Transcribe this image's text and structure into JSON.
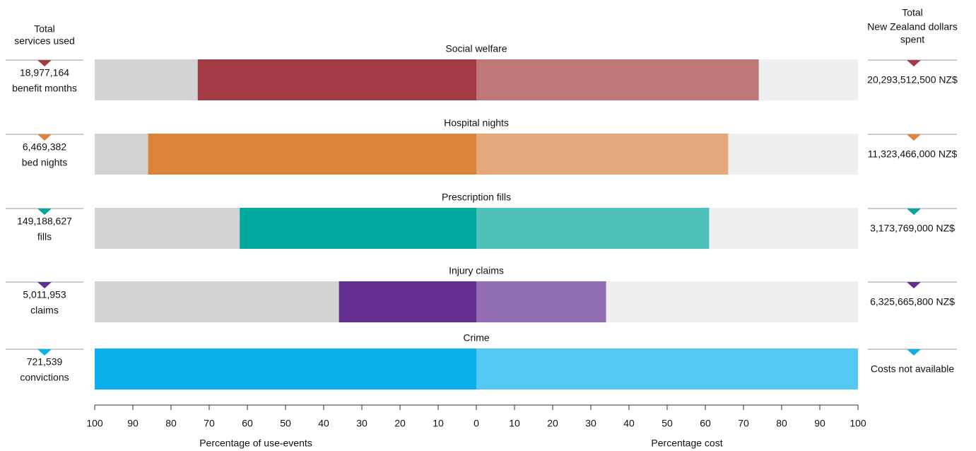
{
  "chart_data": {
    "type": "butterfly",
    "categories": [
      "Social welfare",
      "Hospital nights",
      "Prescription fills",
      "Injury claims",
      "Crime"
    ],
    "left_values": [
      73,
      86,
      62,
      36,
      100
    ],
    "right_values": [
      74,
      66,
      61,
      34,
      100
    ],
    "left_colors": [
      "#a33b44",
      "#dc853a",
      "#00a79d",
      "#652d90",
      "#0bb0ea"
    ],
    "right_colors": [
      "#bf7777",
      "#e6aa7a",
      "#4fc1b9",
      "#936db3",
      "#53c8f1"
    ],
    "left_background": "#d3d3d3",
    "right_background": "#efefef",
    "left_xlim": [
      100,
      0
    ],
    "right_xlim": [
      0,
      100
    ],
    "left_xticks": [
      100,
      90,
      80,
      70,
      60,
      50,
      40,
      30,
      20,
      10
    ],
    "right_xticks": [
      0,
      10,
      20,
      30,
      40,
      50,
      60,
      70,
      80,
      90,
      100
    ],
    "left_xlabel": "Percentage of use-events",
    "right_xlabel": "Percentage cost",
    "left_header": [
      "Total",
      "services used"
    ],
    "right_header": [
      "Total",
      "New Zealand dollars",
      "spent"
    ],
    "services": [
      [
        "18,977,164",
        "benefit months"
      ],
      [
        "6,469,382",
        "bed nights"
      ],
      [
        "149,188,627",
        "fills"
      ],
      [
        "5,011,953",
        "claims"
      ],
      [
        "721,539",
        "convictions"
      ]
    ],
    "costs": [
      "20,293,512,500 NZ$",
      "11,323,466,000 NZ$",
      "3,173,769,000 NZ$",
      "6,325,665,800 NZ$",
      "Costs not available"
    ]
  }
}
